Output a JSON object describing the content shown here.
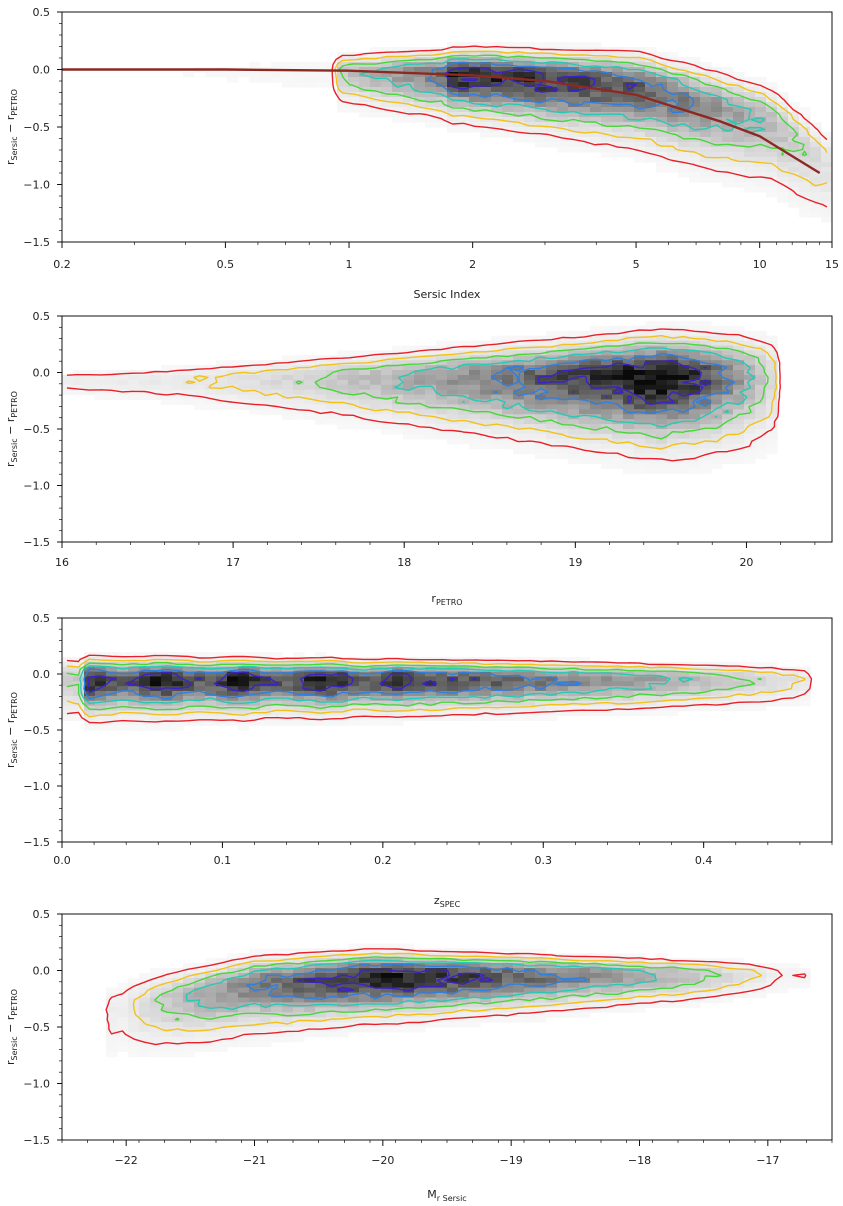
{
  "colors": {
    "contour_outer": "#e8202a",
    "contour_2": "#f2c21a",
    "contour_3": "#49d63a",
    "contour_4": "#27c9b4",
    "contour_5": "#2f7fe0",
    "contour_inner": "#3b22c4",
    "fit_curve": "#8c2a22",
    "density_max": "#0a0a0a"
  },
  "y_axis": {
    "label_main": "r",
    "label_sub": "Sersic",
    "label_mid": " − r",
    "label_sub2": "PETRO",
    "ylim": [
      -1.5,
      0.5
    ],
    "ticks": [
      "0.5",
      "0.0",
      "−0.5",
      "−1.0",
      "−1.5"
    ]
  },
  "chart_data": [
    {
      "type": "heatmap",
      "subtype": "2d-density-with-contours",
      "xscale": "log",
      "xlim": [
        0.2,
        15
      ],
      "ylim": [
        -1.5,
        0.5
      ],
      "xlabel": "Sersic Index",
      "xlabel_sub": "",
      "xticks": [
        "0.2",
        "0.5",
        "1",
        "2",
        "5",
        "10",
        "15"
      ],
      "xtick_values": [
        0.2,
        0.5,
        1,
        2,
        5,
        10,
        15
      ],
      "ridge": {
        "x": [
          0.3,
          1,
          4,
          14
        ],
        "y": [
          0.0,
          -0.03,
          -0.1,
          -0.85
        ]
      },
      "fit_curve": {
        "x": [
          0.2,
          0.3,
          0.5,
          1,
          2,
          3,
          5,
          8,
          10,
          14
        ],
        "y": [
          0.0,
          0.0,
          0.0,
          -0.01,
          -0.05,
          -0.1,
          -0.22,
          -0.45,
          -0.58,
          -0.9
        ]
      }
    },
    {
      "type": "heatmap",
      "subtype": "2d-density-with-contours",
      "xscale": "linear",
      "xlim": [
        16,
        20.5
      ],
      "ylim": [
        -1.5,
        0.5
      ],
      "xlabel": "r",
      "xlabel_sub": "PETRO",
      "xticks": [
        "16",
        "17",
        "18",
        "19",
        "20"
      ],
      "xtick_values": [
        16,
        17,
        18,
        19,
        20
      ],
      "ridge": {
        "x": [
          16.2,
          17,
          18,
          19,
          19.5
        ],
        "y": [
          -0.08,
          -0.07,
          -0.05,
          -0.03,
          -0.03
        ]
      }
    },
    {
      "type": "heatmap",
      "subtype": "2d-density-with-contours",
      "xscale": "linear",
      "xlim": [
        0.0,
        0.48
      ],
      "ylim": [
        -1.5,
        0.5
      ],
      "xlabel": "z",
      "xlabel_sub": "SPEC",
      "xticks": [
        "0.0",
        "0.1",
        "0.2",
        "0.3",
        "0.4"
      ],
      "xtick_values": [
        0.0,
        0.1,
        0.2,
        0.3,
        0.4
      ],
      "ridge": {
        "x": [
          0.0,
          0.1,
          0.2,
          0.3,
          0.46
        ],
        "y": [
          -0.05,
          -0.05,
          -0.05,
          -0.05,
          -0.05
        ]
      }
    },
    {
      "type": "heatmap",
      "subtype": "2d-density-with-contours",
      "xscale": "linear",
      "xlim": [
        -22.5,
        -16.5
      ],
      "ylim": [
        -1.5,
        0.5
      ],
      "xlabel": "M",
      "xlabel_sub": "r Sersic",
      "xticks": [
        "−22",
        "−21",
        "−20",
        "−19",
        "−18",
        "−17"
      ],
      "xtick_values": [
        -22,
        -21,
        -20,
        -19,
        -18,
        -17
      ],
      "ridge": {
        "x": [
          -22,
          -21,
          -20,
          -19,
          -17
        ],
        "y": [
          -0.3,
          -0.1,
          -0.04,
          -0.03,
          -0.03
        ]
      }
    }
  ]
}
